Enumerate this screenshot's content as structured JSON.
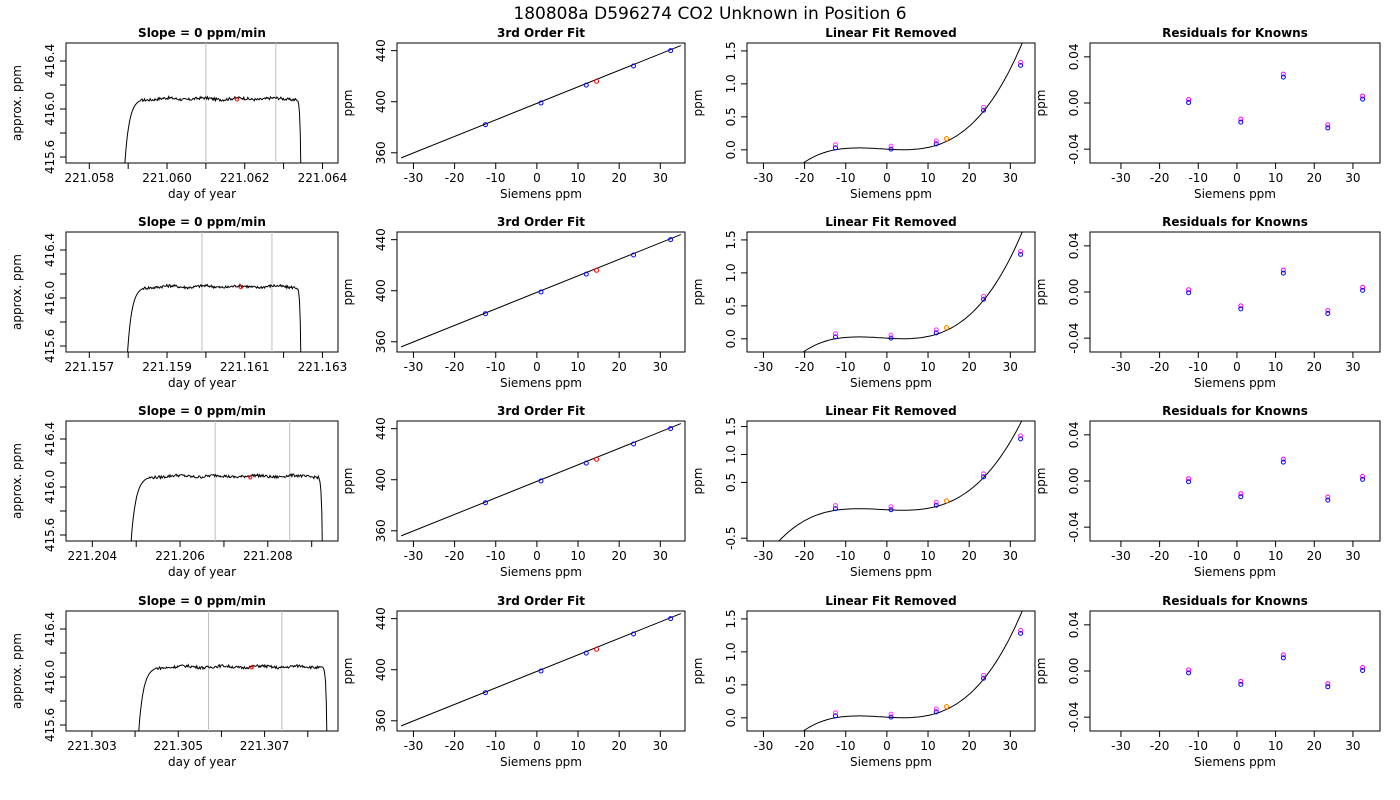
{
  "figure_title": "180808a      D596274    CO2 Unknown in Position  6",
  "colors": {
    "known": "#0000ff",
    "unknown": "#ff0000",
    "unknown_fit": "#ff8c00",
    "resid_a": "#ff00ff",
    "resid_b": "#0000ff",
    "vline": "#bebebe",
    "line": "#000000"
  },
  "chart_data": [
    {
      "row": 1,
      "panels": [
        {
          "type": "line",
          "title": "Slope =  0  ppm/min",
          "xlabel": "day of year",
          "ylabel": "approx. ppm",
          "xlim": [
            221.0574,
            221.0644
          ],
          "ylim": [
            415.55,
            416.55
          ],
          "xticks": [
            221.058,
            221.059,
            221.06,
            221.061,
            221.062,
            221.063,
            221.064
          ],
          "xtick_labels": [
            "221.058",
            "",
            "221.060",
            "",
            "221.062",
            "",
            "221.064"
          ],
          "yticks": [
            415.6,
            415.8,
            416.0,
            416.2,
            416.4
          ],
          "ytick_labels": [
            "415.6",
            "",
            "416.0",
            "",
            "416.4"
          ],
          "trace": {
            "start": 221.05888,
            "end": 221.06345,
            "plateau": 416.085,
            "amp": 0.012
          },
          "vlines": [
            221.061,
            221.0628
          ],
          "marker": {
            "x": 221.0618,
            "y": 416.08
          }
        },
        {
          "type": "scatter",
          "title": "3rd Order Fit",
          "xlabel": "Siemens ppm",
          "ylabel": "ppm",
          "xlim": [
            -34,
            36
          ],
          "ylim": [
            352,
            446
          ],
          "xticks": [
            -30,
            -20,
            -10,
            0,
            10,
            20,
            30
          ],
          "yticks": [
            360,
            400,
            440
          ],
          "line": {
            "x": [
              -33,
              35
            ],
            "y": [
              356,
              444
            ]
          },
          "points": [
            {
              "x": -12.5,
              "y": 382
            },
            {
              "x": 1,
              "y": 399
            },
            {
              "x": 12,
              "y": 413
            },
            {
              "x": 23.5,
              "y": 428
            },
            {
              "x": 32.5,
              "y": 440
            }
          ],
          "unknown": {
            "x": 14.5,
            "y": 416
          }
        },
        {
          "type": "scatter",
          "title": "Linear Fit Removed",
          "xlabel": "Siemens ppm",
          "ylabel": "ppm",
          "xlim": [
            -34,
            36
          ],
          "ylim": [
            -0.2,
            1.62
          ],
          "xticks": [
            -30,
            -20,
            -10,
            0,
            10,
            20,
            30
          ],
          "yticks": [
            0.0,
            0.5,
            1.0,
            1.5
          ],
          "ytick_labels": [
            "0.0",
            "0.5",
            "1.0",
            "1.5"
          ],
          "curve_x": [
            -33,
            35
          ],
          "points": [
            {
              "x": -12.5,
              "y": 0.03
            },
            {
              "x": 1,
              "y": 0.01
            },
            {
              "x": 12,
              "y": 0.09
            },
            {
              "x": 23.5,
              "y": 0.6
            },
            {
              "x": 32.5,
              "y": 1.28
            }
          ],
          "unknown": {
            "x": 14.5,
            "y": 0.17
          }
        },
        {
          "type": "scatter",
          "title": "Residuals for Knowns",
          "xlabel": "Siemens ppm",
          "ylabel": "ppm",
          "xlim": [
            -38,
            37
          ],
          "ylim": [
            -0.052,
            0.052
          ],
          "xticks": [
            -30,
            -20,
            -10,
            0,
            10,
            20,
            30
          ],
          "yticks": [
            -0.04,
            0.0,
            0.04
          ],
          "ytick_labels": [
            "-0.04",
            "0.00",
            "0.04"
          ],
          "points": [
            {
              "x": -12.5,
              "y": 0.003
            },
            {
              "x": 1,
              "y": -0.014
            },
            {
              "x": 12,
              "y": 0.025
            },
            {
              "x": 23.5,
              "y": -0.019
            },
            {
              "x": 32.5,
              "y": 0.006
            }
          ]
        }
      ]
    },
    {
      "row": 2,
      "panels": [
        {
          "type": "line",
          "title": "Slope =  0  ppm/min",
          "xlabel": "day of year",
          "ylabel": "approx. ppm",
          "xlim": [
            221.1564,
            221.1634
          ],
          "ylim": [
            415.55,
            416.55
          ],
          "xticks": [
            221.157,
            221.158,
            221.159,
            221.16,
            221.161,
            221.162,
            221.163
          ],
          "xtick_labels": [
            "221.157",
            "",
            "221.159",
            "",
            "221.161",
            "",
            "221.163"
          ],
          "yticks": [
            415.6,
            415.8,
            416.0,
            416.2,
            416.4
          ],
          "ytick_labels": [
            "415.6",
            "",
            "416.0",
            "",
            "416.4"
          ],
          "trace": {
            "start": 221.15795,
            "end": 221.16245,
            "plateau": 416.095,
            "amp": 0.012
          },
          "vlines": [
            221.1599,
            221.1617
          ],
          "marker": {
            "x": 221.1609,
            "y": 416.09
          }
        },
        {
          "type": "scatter",
          "title": "3rd Order Fit",
          "xlabel": "Siemens ppm",
          "ylabel": "ppm",
          "xlim": [
            -34,
            36
          ],
          "ylim": [
            352,
            446
          ],
          "xticks": [
            -30,
            -20,
            -10,
            0,
            10,
            20,
            30
          ],
          "yticks": [
            360,
            400,
            440
          ],
          "line": {
            "x": [
              -33,
              35
            ],
            "y": [
              356,
              444
            ]
          },
          "points": [
            {
              "x": -12.5,
              "y": 382
            },
            {
              "x": 1,
              "y": 399
            },
            {
              "x": 12,
              "y": 413
            },
            {
              "x": 23.5,
              "y": 428
            },
            {
              "x": 32.5,
              "y": 440
            }
          ],
          "unknown": {
            "x": 14.5,
            "y": 416
          }
        },
        {
          "type": "scatter",
          "title": "Linear Fit Removed",
          "xlabel": "Siemens ppm",
          "ylabel": "ppm",
          "xlim": [
            -34,
            36
          ],
          "ylim": [
            -0.2,
            1.62
          ],
          "xticks": [
            -30,
            -20,
            -10,
            0,
            10,
            20,
            30
          ],
          "yticks": [
            0.0,
            0.5,
            1.0,
            1.5
          ],
          "ytick_labels": [
            "0.0",
            "0.5",
            "1.0",
            "1.5"
          ],
          "curve_x": [
            -33,
            35
          ],
          "points": [
            {
              "x": -12.5,
              "y": 0.03
            },
            {
              "x": 1,
              "y": 0.01
            },
            {
              "x": 12,
              "y": 0.09
            },
            {
              "x": 23.5,
              "y": 0.6
            },
            {
              "x": 32.5,
              "y": 1.28
            }
          ],
          "unknown": {
            "x": 14.5,
            "y": 0.17
          }
        },
        {
          "type": "scatter",
          "title": "Residuals for Knowns",
          "xlabel": "Siemens ppm",
          "ylabel": "ppm",
          "xlim": [
            -38,
            37
          ],
          "ylim": [
            -0.052,
            0.052
          ],
          "xticks": [
            -30,
            -20,
            -10,
            0,
            10,
            20,
            30
          ],
          "yticks": [
            -0.04,
            0.0,
            0.04
          ],
          "ytick_labels": [
            "-0.04",
            "0.00",
            "0.04"
          ],
          "points": [
            {
              "x": -12.5,
              "y": 0.002
            },
            {
              "x": 1,
              "y": -0.012
            },
            {
              "x": 12,
              "y": 0.019
            },
            {
              "x": 23.5,
              "y": -0.016
            },
            {
              "x": 32.5,
              "y": 0.004
            }
          ]
        }
      ]
    },
    {
      "row": 3,
      "panels": [
        {
          "type": "line",
          "title": "Slope =  0  ppm/min",
          "xlabel": "day of year",
          "ylabel": "approx. ppm",
          "xlim": [
            221.2034,
            221.2096
          ],
          "ylim": [
            415.55,
            416.55
          ],
          "xticks": [
            221.204,
            221.205,
            221.206,
            221.207,
            221.208,
            221.209
          ],
          "xtick_labels": [
            "221.204",
            "",
            "221.206",
            "",
            "221.208",
            ""
          ],
          "yticks": [
            415.6,
            415.8,
            416.0,
            416.2,
            416.4
          ],
          "ytick_labels": [
            "415.6",
            "",
            "416.0",
            "",
            "416.4"
          ],
          "trace": {
            "start": 221.20485,
            "end": 221.20925,
            "plateau": 416.09,
            "amp": 0.012
          },
          "vlines": [
            221.2068,
            221.2085
          ],
          "marker": {
            "x": 221.2076,
            "y": 416.08
          }
        },
        {
          "type": "scatter",
          "title": "3rd Order Fit",
          "xlabel": "Siemens ppm",
          "ylabel": "ppm",
          "xlim": [
            -34,
            36
          ],
          "ylim": [
            352,
            446
          ],
          "xticks": [
            -30,
            -20,
            -10,
            0,
            10,
            20,
            30
          ],
          "yticks": [
            360,
            400,
            440
          ],
          "line": {
            "x": [
              -33,
              35
            ],
            "y": [
              356,
              444
            ]
          },
          "points": [
            {
              "x": -12.5,
              "y": 382
            },
            {
              "x": 1,
              "y": 399
            },
            {
              "x": 12,
              "y": 413
            },
            {
              "x": 23.5,
              "y": 428
            },
            {
              "x": 32.5,
              "y": 440
            }
          ],
          "unknown": {
            "x": 14.5,
            "y": 416
          }
        },
        {
          "type": "scatter",
          "title": "Linear Fit Removed",
          "xlabel": "Siemens ppm",
          "ylabel": "ppm",
          "xlim": [
            -34,
            36
          ],
          "ylim": [
            -0.55,
            1.6
          ],
          "xticks": [
            -30,
            -20,
            -10,
            0,
            10,
            20,
            30
          ],
          "yticks": [
            -0.5,
            0.5,
            1.0,
            1.5
          ],
          "ytick_labels": [
            "-0.5",
            "0.5",
            "1.0",
            "1.5"
          ],
          "curve_x": [
            -33,
            35
          ],
          "points": [
            {
              "x": -12.5,
              "y": 0.03
            },
            {
              "x": 1,
              "y": 0.01
            },
            {
              "x": 12,
              "y": 0.09
            },
            {
              "x": 23.5,
              "y": 0.6
            },
            {
              "x": 32.5,
              "y": 1.28
            }
          ],
          "unknown": {
            "x": 14.5,
            "y": 0.17
          }
        },
        {
          "type": "scatter",
          "title": "Residuals for Knowns",
          "xlabel": "Siemens ppm",
          "ylabel": "ppm",
          "xlim": [
            -38,
            37
          ],
          "ylim": [
            -0.052,
            0.052
          ],
          "xticks": [
            -30,
            -20,
            -10,
            0,
            10,
            20,
            30
          ],
          "yticks": [
            -0.04,
            0.0,
            0.04
          ],
          "ytick_labels": [
            "-0.04",
            "0.00",
            "0.04"
          ],
          "points": [
            {
              "x": -12.5,
              "y": 0.002
            },
            {
              "x": 1,
              "y": -0.011
            },
            {
              "x": 12,
              "y": 0.019
            },
            {
              "x": 23.5,
              "y": -0.014
            },
            {
              "x": 32.5,
              "y": 0.004
            }
          ]
        }
      ]
    },
    {
      "row": 4,
      "panels": [
        {
          "type": "line",
          "title": "Slope =  0  ppm/min",
          "xlabel": "day of year",
          "ylabel": "approx. ppm",
          "xlim": [
            221.3024,
            221.3087
          ],
          "ylim": [
            415.55,
            416.55
          ],
          "xticks": [
            221.303,
            221.304,
            221.305,
            221.306,
            221.307,
            221.308
          ],
          "xtick_labels": [
            "221.303",
            "",
            "221.305",
            "",
            "221.307",
            ""
          ],
          "yticks": [
            415.6,
            415.8,
            416.0,
            416.2,
            416.4
          ],
          "ytick_labels": [
            "415.6",
            "",
            "416.0",
            "",
            "416.4"
          ],
          "trace": {
            "start": 221.30405,
            "end": 221.30845,
            "plateau": 416.085,
            "amp": 0.012
          },
          "vlines": [
            221.3057,
            221.3074
          ],
          "marker": {
            "x": 221.3067,
            "y": 416.08
          }
        },
        {
          "type": "scatter",
          "title": "3rd Order Fit",
          "xlabel": "Siemens ppm",
          "ylabel": "ppm",
          "xlim": [
            -34,
            36
          ],
          "ylim": [
            352,
            446
          ],
          "xticks": [
            -30,
            -20,
            -10,
            0,
            10,
            20,
            30
          ],
          "yticks": [
            360,
            400,
            440
          ],
          "line": {
            "x": [
              -33,
              35
            ],
            "y": [
              356,
              444
            ]
          },
          "points": [
            {
              "x": -12.5,
              "y": 382
            },
            {
              "x": 1,
              "y": 399
            },
            {
              "x": 12,
              "y": 413
            },
            {
              "x": 23.5,
              "y": 428
            },
            {
              "x": 32.5,
              "y": 440
            }
          ],
          "unknown": {
            "x": 14.5,
            "y": 416
          }
        },
        {
          "type": "scatter",
          "title": "Linear Fit Removed",
          "xlabel": "Siemens ppm",
          "ylabel": "ppm",
          "xlim": [
            -34,
            36
          ],
          "ylim": [
            -0.2,
            1.62
          ],
          "xticks": [
            -30,
            -20,
            -10,
            0,
            10,
            20,
            30
          ],
          "yticks": [
            0.0,
            0.5,
            1.0,
            1.5
          ],
          "ytick_labels": [
            "0.0",
            "0.5",
            "1.0",
            "1.5"
          ],
          "curve_x": [
            -33,
            35
          ],
          "points": [
            {
              "x": -12.5,
              "y": 0.03
            },
            {
              "x": 1,
              "y": 0.01
            },
            {
              "x": 12,
              "y": 0.09
            },
            {
              "x": 23.5,
              "y": 0.6
            },
            {
              "x": 32.5,
              "y": 1.28
            }
          ],
          "unknown": {
            "x": 14.5,
            "y": 0.17
          }
        },
        {
          "type": "scatter",
          "title": "Residuals for Knowns",
          "xlabel": "Siemens ppm",
          "ylabel": "ppm",
          "xlim": [
            -38,
            37
          ],
          "ylim": [
            -0.052,
            0.052
          ],
          "xticks": [
            -30,
            -20,
            -10,
            0,
            10,
            20,
            30
          ],
          "yticks": [
            -0.04,
            0.0,
            0.04
          ],
          "ytick_labels": [
            "-0.04",
            "0.00",
            "0.04"
          ],
          "points": [
            {
              "x": -12.5,
              "y": 0.001
            },
            {
              "x": 1,
              "y": -0.009
            },
            {
              "x": 12,
              "y": 0.014
            },
            {
              "x": 23.5,
              "y": -0.011
            },
            {
              "x": 32.5,
              "y": 0.003
            }
          ]
        }
      ]
    }
  ]
}
